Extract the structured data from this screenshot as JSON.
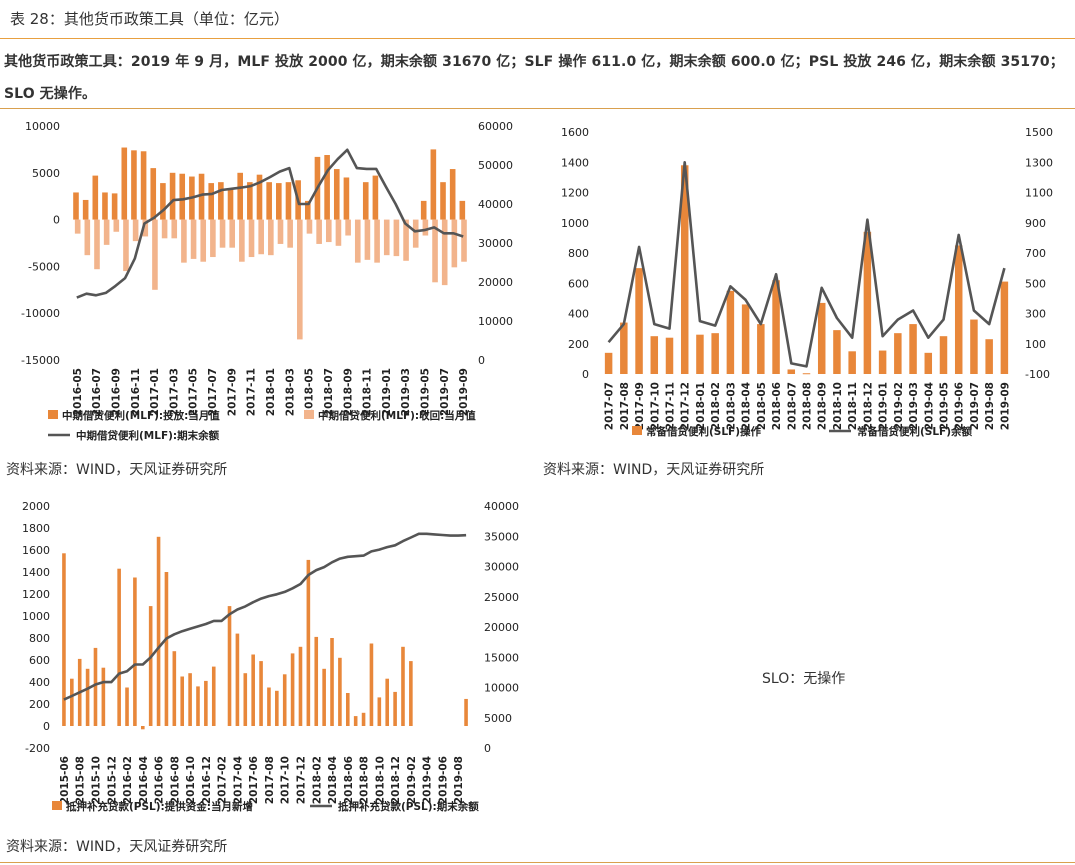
{
  "header": {
    "table_title": "表 28：其他货币政策工具（单位：亿元）",
    "summary": "其他货币政策工具：2019 年 9 月，MLF 投放 2000 亿，期末余额 31670 亿；SLF 操作 611.0 亿，期末余额 600.0 亿；PSL 投放 246 亿，期末余额 35170；SLO 无操作。"
  },
  "sources": {
    "s1": "资料来源：WIND，天风证券研究所",
    "s2": "资料来源：WIND，天风证券研究所",
    "s3": "资料来源：WIND，天风证券研究所"
  },
  "slo_note": "SLO：无操作",
  "colors": {
    "bar": "#e8873a",
    "bar_light": "#f2b48c",
    "line": "#555555",
    "rule": "#e8a040"
  },
  "chart_data": [
    {
      "type": "bar",
      "id": "mlf",
      "categories": [
        "2016-05",
        "2016-06",
        "2016-07",
        "2016-08",
        "2016-09",
        "2016-10",
        "2016-11",
        "2016-12",
        "2017-01",
        "2017-02",
        "2017-03",
        "2017-04",
        "2017-05",
        "2017-06",
        "2017-07",
        "2017-08",
        "2017-09",
        "2017-10",
        "2017-11",
        "2017-12",
        "2018-01",
        "2018-02",
        "2018-03",
        "2018-04",
        "2018-05",
        "2018-06",
        "2018-07",
        "2018-08",
        "2018-09",
        "2018-10",
        "2018-11",
        "2018-12",
        "2019-01",
        "2019-02",
        "2019-03",
        "2019-04",
        "2019-05",
        "2019-06",
        "2019-07",
        "2019-08",
        "2019-09"
      ],
      "tick_labels": [
        "2016-05",
        "2016-07",
        "2016-09",
        "2016-11",
        "2017-01",
        "2017-03",
        "2017-05",
        "2017-07",
        "2017-09",
        "2017-11",
        "2018-01",
        "2018-03",
        "2018-05",
        "2018-07",
        "2018-09",
        "2018-11",
        "2019-01",
        "2019-03",
        "2019-05",
        "2019-07",
        "2019-09"
      ],
      "series": [
        {
          "name": "中期借贷便利(MLF):投放:当月值",
          "axis": "left",
          "values": [
            2900,
            2100,
            4700,
            2900,
            2800,
            7700,
            7400,
            7300,
            5500,
            3900,
            5000,
            4900,
            4600,
            4900,
            3900,
            4000,
            3200,
            5000,
            4000,
            4800,
            4000,
            3900,
            4000,
            4200,
            2000,
            6700,
            6900,
            5400,
            4500,
            0,
            4000,
            4700,
            0,
            0,
            0,
            0,
            2000,
            7500,
            4000,
            5400,
            2000
          ]
        },
        {
          "name": "中期借贷便利(MLF):收回:当月值",
          "axis": "left",
          "values": [
            -1500,
            -3800,
            -5300,
            -2700,
            -1300,
            -5500,
            -2300,
            -1800,
            -7500,
            -2000,
            -2000,
            -4600,
            -4200,
            -4500,
            -4000,
            -3000,
            -3000,
            -4500,
            -4000,
            -3700,
            -3800,
            -2600,
            -3000,
            -12800,
            -1500,
            -2600,
            -2400,
            -2800,
            -1700,
            -4600,
            -4300,
            -4600,
            -3800,
            -3900,
            -4400,
            -3000,
            -1700,
            -6700,
            -7000,
            -5100,
            -4500
          ]
        },
        {
          "name": "中期借贷便利(MLF):期末余额",
          "axis": "right",
          "type": "line",
          "values": [
            16000,
            17000,
            16600,
            17200,
            19000,
            21000,
            26000,
            35000,
            36500,
            38500,
            41000,
            41200,
            41700,
            42400,
            42600,
            43600,
            43900,
            44200,
            44600,
            45600,
            46900,
            48300,
            49200,
            40000,
            40000,
            44500,
            48700,
            51500,
            53900,
            49200,
            49000,
            49000,
            44400,
            40000,
            35000,
            33000,
            33300,
            34000,
            32500,
            32500,
            31670
          ]
        }
      ],
      "ylim_left": [
        -15000,
        10000
      ],
      "yticks_left": [
        -15000,
        -10000,
        -5000,
        0,
        5000,
        10000
      ],
      "ylim_right": [
        0,
        60000
      ],
      "yticks_right": [
        0,
        10000,
        20000,
        30000,
        40000,
        50000,
        60000
      ]
    },
    {
      "type": "bar",
      "id": "slf",
      "categories": [
        "2017-07",
        "2017-08",
        "2017-09",
        "2017-10",
        "2017-11",
        "2017-12",
        "2018-01",
        "2018-02",
        "2018-03",
        "2018-04",
        "2018-05",
        "2018-06",
        "2018-07",
        "2018-08",
        "2018-09",
        "2018-10",
        "2018-11",
        "2018-12",
        "2019-01",
        "2019-02",
        "2019-03",
        "2019-04",
        "2019-05",
        "2019-06",
        "2019-07",
        "2019-08",
        "2019-09"
      ],
      "tick_labels": [
        "2017-07",
        "2017-08",
        "2017-09",
        "2017-10",
        "2017-11",
        "2017-12",
        "2018-01",
        "2018-02",
        "2018-03",
        "2018-04",
        "2018-05",
        "2018-06",
        "2018-07",
        "2018-08",
        "2018-09",
        "2018-10",
        "2018-11",
        "2018-12",
        "2019-01",
        "2019-02",
        "2019-03",
        "2019-04",
        "2019-05",
        "2019-06",
        "2019-07",
        "2019-08",
        "2019-09"
      ],
      "series": [
        {
          "name": "常备借贷便利(SLF)操作",
          "axis": "left",
          "values": [
            140,
            340,
            700,
            250,
            240,
            1380,
            260,
            270,
            550,
            460,
            330,
            620,
            30,
            5,
            470,
            290,
            150,
            940,
            155,
            270,
            330,
            140,
            250,
            850,
            360,
            230,
            611
          ]
        },
        {
          "name": "常备借贷便利(SLF)余额",
          "axis": "right",
          "type": "line",
          "values": [
            110,
            230,
            740,
            230,
            200,
            1300,
            250,
            220,
            480,
            390,
            230,
            560,
            -30,
            -50,
            470,
            270,
            140,
            920,
            150,
            260,
            320,
            140,
            260,
            820,
            320,
            230,
            600
          ]
        }
      ],
      "ylim_left": [
        0,
        1600
      ],
      "yticks_left": [
        0,
        200,
        400,
        600,
        800,
        1000,
        1200,
        1400,
        1600
      ],
      "ylim_right": [
        -100,
        1500
      ],
      "yticks_right": [
        -100,
        100,
        300,
        500,
        700,
        900,
        1100,
        1300,
        1500
      ]
    },
    {
      "type": "bar",
      "id": "psl",
      "categories": [
        "2015-06",
        "2015-07",
        "2015-08",
        "2015-09",
        "2015-10",
        "2015-11",
        "2015-12",
        "2016-01",
        "2016-02",
        "2016-03",
        "2016-04",
        "2016-05",
        "2016-06",
        "2016-07",
        "2016-08",
        "2016-09",
        "2016-10",
        "2016-11",
        "2016-12",
        "2017-01",
        "2017-02",
        "2017-03",
        "2017-04",
        "2017-05",
        "2017-06",
        "2017-07",
        "2017-08",
        "2017-09",
        "2017-10",
        "2017-11",
        "2017-12",
        "2018-01",
        "2018-02",
        "2018-03",
        "2018-04",
        "2018-05",
        "2018-06",
        "2018-07",
        "2018-08",
        "2018-09",
        "2018-10",
        "2018-11",
        "2018-12",
        "2019-01",
        "2019-02",
        "2019-03",
        "2019-04",
        "2019-05",
        "2019-06",
        "2019-07",
        "2019-08",
        "2019-09"
      ],
      "tick_labels": [
        "2015-06",
        "2015-08",
        "2015-10",
        "2015-12",
        "2016-02",
        "2016-04",
        "2016-06",
        "2016-08",
        "2016-10",
        "2016-12",
        "2017-02",
        "2017-04",
        "2017-06",
        "2017-08",
        "2017-10",
        "2017-12",
        "2018-02",
        "2018-04",
        "2018-06",
        "2018-08",
        "2018-10",
        "2018-12",
        "2019-02",
        "2019-04",
        "2019-06",
        "2019-08"
      ],
      "series": [
        {
          "name": "抵押补充贷款(PSL):提供资金:当月新增",
          "axis": "left",
          "values": [
            1570,
            430,
            610,
            520,
            710,
            530,
            0,
            1430,
            350,
            1350,
            -30,
            1090,
            1720,
            1400,
            680,
            450,
            480,
            360,
            410,
            540,
            0,
            1090,
            840,
            480,
            650,
            590,
            350,
            320,
            470,
            660,
            720,
            1510,
            810,
            520,
            800,
            620,
            300,
            90,
            120,
            750,
            260,
            430,
            310,
            720,
            590,
            0,
            0,
            0,
            0,
            0,
            0,
            246
          ]
        },
        {
          "name": "抵押补充贷款(PSL):期末余额",
          "axis": "right",
          "type": "line",
          "values": [
            8000,
            8600,
            9200,
            9800,
            10500,
            10900,
            10900,
            12300,
            12700,
            13800,
            13800,
            15000,
            16600,
            18100,
            18800,
            19300,
            19700,
            20100,
            20500,
            21000,
            21000,
            22100,
            22900,
            23400,
            24100,
            24700,
            25100,
            25400,
            25800,
            26400,
            27100,
            28600,
            29400,
            29900,
            30700,
            31300,
            31600,
            31700,
            31800,
            32500,
            32800,
            33200,
            33500,
            34200,
            34800,
            35400,
            35400,
            35300,
            35200,
            35100,
            35100,
            35170
          ]
        }
      ],
      "ylim_left": [
        -200,
        2000
      ],
      "yticks_left": [
        -200,
        0,
        200,
        400,
        600,
        800,
        1000,
        1200,
        1400,
        1600,
        1800,
        2000
      ],
      "ylim_right": [
        0,
        40000
      ],
      "yticks_right": [
        0,
        5000,
        10000,
        15000,
        20000,
        25000,
        30000,
        35000,
        40000
      ]
    }
  ]
}
